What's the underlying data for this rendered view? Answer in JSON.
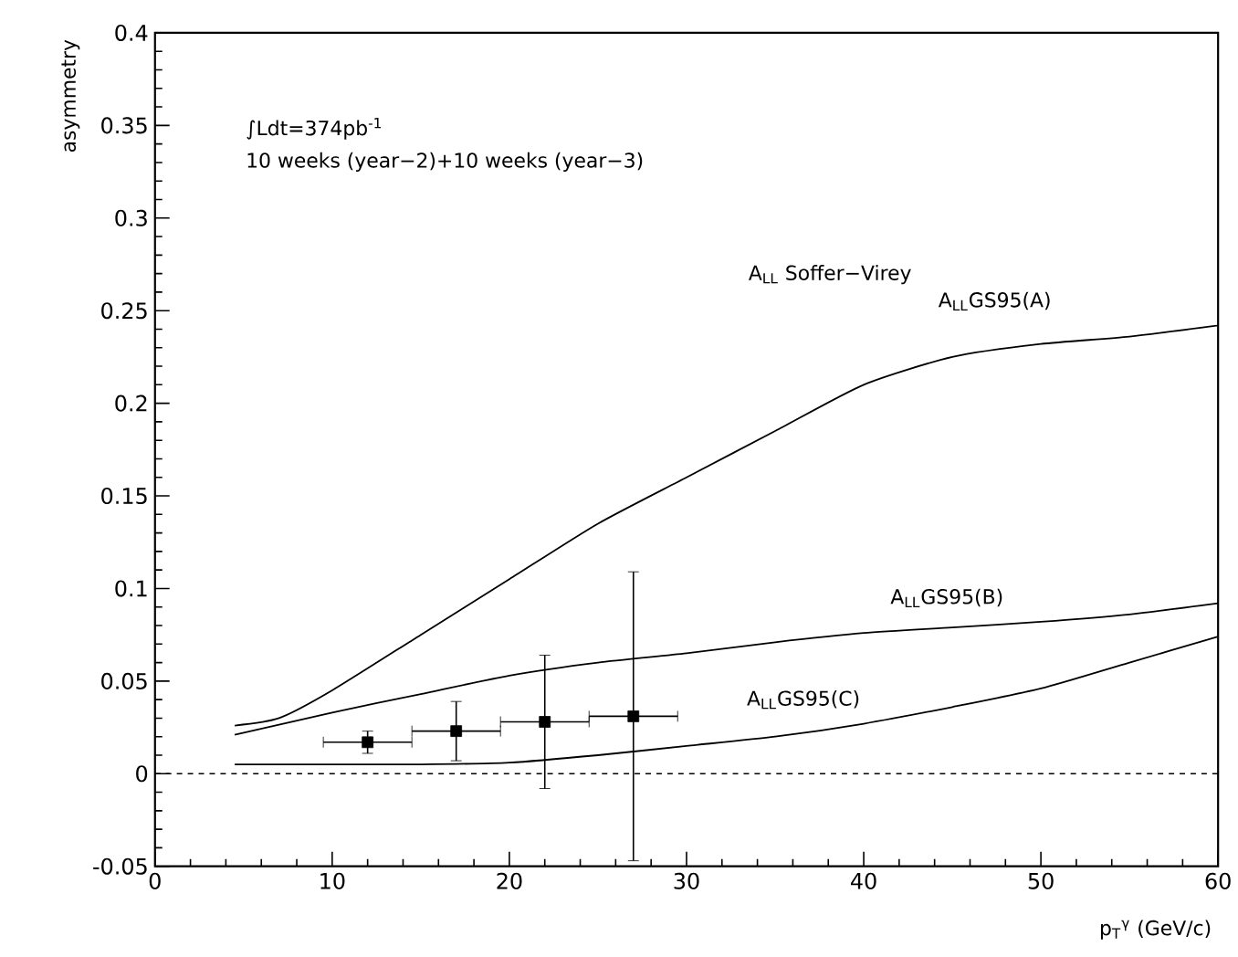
{
  "chart_data": {
    "type": "line",
    "xlabel": "p$_{T}$$^{γ}$ (GeV/c)",
    "ylabel": "asymmetry",
    "xlim": [
      0,
      60
    ],
    "ylim": [
      -0.05,
      0.4
    ],
    "xticks": [
      0,
      10,
      20,
      30,
      40,
      50,
      60
    ],
    "yticks": [
      -0.05,
      0,
      0.05,
      0.1,
      0.15,
      0.2,
      0.25,
      0.3,
      0.35,
      0.4
    ],
    "grid": false,
    "annotations": [
      "∫Ldt=374pb$^{-1}$",
      "10 weeks (year−2)+10 weeks (year−3)",
      "A$_{LL}$ Soffer−Virey"
    ],
    "ref_lines": [
      {
        "axis": "y",
        "value": 0,
        "line_style": "dashed",
        "color": "#000000"
      }
    ],
    "series": [
      {
        "name": "A$_{LL}$GS95(A)",
        "color": "#000000",
        "x": [
          4.5,
          7,
          10,
          15,
          20,
          25,
          30,
          35,
          40,
          45,
          50,
          55,
          60
        ],
        "values": [
          0.026,
          0.03,
          0.045,
          0.075,
          0.105,
          0.135,
          0.16,
          0.185,
          0.21,
          0.225,
          0.232,
          0.236,
          0.242
        ]
      },
      {
        "name": "A$_{LL}$GS95(B)",
        "color": "#000000",
        "x": [
          4.5,
          10,
          15,
          20,
          25,
          30,
          35,
          40,
          45,
          50,
          55,
          60
        ],
        "values": [
          0.021,
          0.033,
          0.043,
          0.053,
          0.06,
          0.065,
          0.071,
          0.076,
          0.079,
          0.082,
          0.086,
          0.092
        ]
      },
      {
        "name": "A$_{LL}$GS95(C)",
        "color": "#000000",
        "x": [
          4.5,
          10,
          15,
          20,
          25,
          30,
          35,
          40,
          45,
          50,
          55,
          60
        ],
        "values": [
          0.005,
          0.005,
          0.005,
          0.006,
          0.01,
          0.015,
          0.02,
          0.027,
          0.036,
          0.046,
          0.06,
          0.074
        ]
      },
      {
        "type": "scatter",
        "marker": "square",
        "color": "#000000",
        "x": [
          12,
          17,
          22,
          27
        ],
        "values": [
          0.017,
          0.023,
          0.028,
          0.031
        ],
        "errors": [
          0.006,
          0.016,
          0.036,
          0.078
        ],
        "xerrors": [
          2.5,
          2.5,
          2.5,
          2.5
        ]
      }
    ]
  }
}
